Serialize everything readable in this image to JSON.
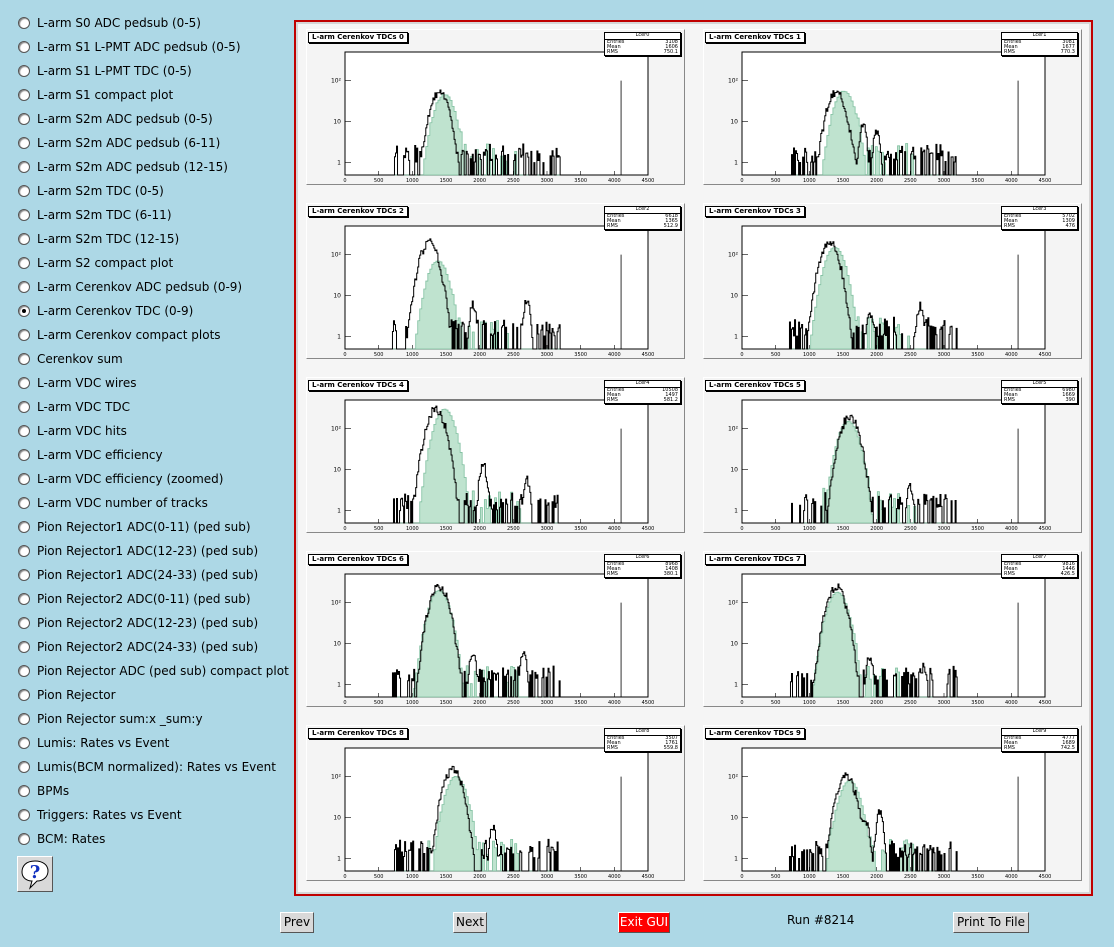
{
  "menu": {
    "selected_index": 12,
    "items": [
      "L-arm S0 ADC pedsub (0-5)",
      "L-arm S1 L-PMT ADC pedsub (0-5)",
      "L-arm S1 L-PMT TDC (0-5)",
      "L-arm S1 compact plot",
      "L-arm S2m ADC pedsub (0-5)",
      "L-arm S2m ADC pedsub (6-11)",
      "L-arm S2m ADC pedsub (12-15)",
      "L-arm S2m TDC (0-5)",
      "L-arm S2m TDC (6-11)",
      "L-arm S2m TDC (12-15)",
      "L-arm S2 compact plot",
      "L-arm Cerenkov ADC pedsub (0-9)",
      "L-arm Cerenkov TDC (0-9)",
      "L-arm Cerenkov compact plots",
      "Cerenkov sum",
      "L-arm VDC wires",
      "L-arm VDC TDC",
      "L-arm VDC hits",
      "L-arm VDC efficiency",
      "L-arm VDC efficiency (zoomed)",
      "L-arm VDC number of tracks",
      "Pion Rejector1 ADC(0-11) (ped sub)",
      "Pion Rejector1 ADC(12-23) (ped sub)",
      "Pion Rejector1 ADC(24-33) (ped sub)",
      "Pion Rejector2 ADC(0-11) (ped sub)",
      "Pion Rejector2 ADC(12-23) (ped sub)",
      "Pion Rejector2 ADC(24-33) (ped sub)",
      "Pion Rejector ADC (ped sub) compact plot",
      "Pion Rejector",
      "Pion Rejector sum:x _sum:y",
      "Lumis: Rates vs Event",
      "Lumis(BCM normalized): Rates vs Event",
      "BPMs",
      "Triggers: Rates vs Event",
      "BCM: Rates"
    ]
  },
  "help_icon": "question-mark-icon",
  "buttons": {
    "prev": "Prev",
    "next": "Next",
    "exit": "Exit GUI",
    "print": "Print To File"
  },
  "run_label": "Run #8214",
  "colors": {
    "frame": "#c00000",
    "exit_bg": "#ff0000",
    "secondary_hist": "#7fbf9f",
    "background": "#add8e6"
  },
  "chart_data": [
    {
      "type": "line",
      "title": "L-arm Cerenkov TDCs 0",
      "stats": {
        "name": "Lcer0",
        "entries": "3108",
        "mean": "1606",
        "rms": "750.1"
      },
      "y_scale": "log",
      "x_ticks": [
        "0",
        "500",
        "1000",
        "1500",
        "2000",
        "2500",
        "3000",
        "3500",
        "4000",
        "4500"
      ],
      "y_ticks": [
        "1",
        "10",
        "10²"
      ],
      "xlim": [
        0,
        4500
      ],
      "peak_x": 1400,
      "peak_y": 50,
      "green_peak_x": 1480,
      "green_peak_y": 45,
      "side_peaks": []
    },
    {
      "type": "line",
      "title": "L-arm Cerenkov TDCs 1",
      "stats": {
        "name": "Lcer1",
        "entries": "3081",
        "mean": "1677",
        "rms": "770.3"
      },
      "y_scale": "log",
      "x_ticks": [
        "0",
        "500",
        "1000",
        "1500",
        "2000",
        "2500",
        "3000",
        "3500",
        "4000",
        "4500"
      ],
      "y_ticks": [
        "1",
        "10",
        "10²"
      ],
      "xlim": [
        0,
        4500
      ],
      "peak_x": 1400,
      "peak_y": 50,
      "green_peak_x": 1520,
      "green_peak_y": 55,
      "side_peaks": [
        [
          1800,
          8
        ],
        [
          2000,
          6
        ]
      ]
    },
    {
      "type": "line",
      "title": "L-arm Cerenkov TDCs 2",
      "stats": {
        "name": "Lcer2",
        "entries": "6618",
        "mean": "1365",
        "rms": "512.9"
      },
      "y_scale": "log",
      "x_ticks": [
        "0",
        "500",
        "1000",
        "1500",
        "2000",
        "2500",
        "3000",
        "3500",
        "4000",
        "4500"
      ],
      "y_ticks": [
        "1",
        "10",
        "10²"
      ],
      "xlim": [
        0,
        4500
      ],
      "peak_x": 1250,
      "peak_y": 200,
      "green_peak_x": 1380,
      "green_peak_y": 70,
      "side_peaks": [
        [
          1900,
          6
        ],
        [
          2700,
          8
        ]
      ]
    },
    {
      "type": "line",
      "title": "L-arm Cerenkov TDCs 3",
      "stats": {
        "name": "Lcer3",
        "entries": "5702",
        "mean": "1309",
        "rms": "476"
      },
      "y_scale": "log",
      "x_ticks": [
        "0",
        "500",
        "1000",
        "1500",
        "2000",
        "2500",
        "3000",
        "3500",
        "4000",
        "4500"
      ],
      "y_ticks": [
        "1",
        "10",
        "10²"
      ],
      "xlim": [
        0,
        4500
      ],
      "peak_x": 1300,
      "peak_y": 200,
      "green_peak_x": 1380,
      "green_peak_y": 150,
      "side_peaks": [
        [
          1900,
          4
        ],
        [
          2650,
          6
        ]
      ]
    },
    {
      "type": "line",
      "title": "L-arm Cerenkov TDCs 4",
      "stats": {
        "name": "Lcer4",
        "entries": "10508",
        "mean": "1497",
        "rms": "581.2"
      },
      "y_scale": "log",
      "x_ticks": [
        "0",
        "500",
        "1000",
        "1500",
        "2000",
        "2500",
        "3000",
        "3500",
        "4000",
        "4500"
      ],
      "y_ticks": [
        "1",
        "10",
        "10²"
      ],
      "xlim": [
        0,
        4500
      ],
      "peak_x": 1350,
      "peak_y": 300,
      "green_peak_x": 1480,
      "green_peak_y": 300,
      "side_peaks": [
        [
          2050,
          15
        ],
        [
          2700,
          6
        ]
      ]
    },
    {
      "type": "line",
      "title": "L-arm Cerenkov TDCs 5",
      "stats": {
        "name": "Lcer5",
        "entries": "6980",
        "mean": "1669",
        "rms": "390"
      },
      "y_scale": "log",
      "x_ticks": [
        "0",
        "500",
        "1000",
        "1500",
        "2000",
        "2500",
        "3000",
        "3500",
        "4000",
        "4500"
      ],
      "y_ticks": [
        "1",
        "10",
        "10²"
      ],
      "xlim": [
        0,
        4500
      ],
      "peak_x": 1600,
      "peak_y": 200,
      "green_peak_x": 1580,
      "green_peak_y": 150,
      "side_peaks": [
        [
          2500,
          4
        ]
      ]
    },
    {
      "type": "line",
      "title": "L-arm Cerenkov TDCs 6",
      "stats": {
        "name": "Lcer6",
        "entries": "8968",
        "mean": "1408",
        "rms": "380.1"
      },
      "y_scale": "log",
      "x_ticks": [
        "0",
        "500",
        "1000",
        "1500",
        "2000",
        "2500",
        "3000",
        "3500",
        "4000",
        "4500"
      ],
      "y_ticks": [
        "1",
        "10",
        "10²"
      ],
      "xlim": [
        0,
        4500
      ],
      "peak_x": 1400,
      "peak_y": 250,
      "green_peak_x": 1400,
      "green_peak_y": 200,
      "side_peaks": [
        [
          1900,
          6
        ],
        [
          2650,
          6
        ]
      ]
    },
    {
      "type": "line",
      "title": "L-arm Cerenkov TDCs 7",
      "stats": {
        "name": "Lcer7",
        "entries": "9816",
        "mean": "1446",
        "rms": "426.5"
      },
      "y_scale": "log",
      "x_ticks": [
        "0",
        "500",
        "1000",
        "1500",
        "2000",
        "2500",
        "3000",
        "3500",
        "4000",
        "4500"
      ],
      "y_ticks": [
        "1",
        "10",
        "10²"
      ],
      "xlim": [
        0,
        4500
      ],
      "peak_x": 1400,
      "peak_y": 250,
      "green_peak_x": 1420,
      "green_peak_y": 180,
      "side_peaks": [
        [
          1900,
          5
        ],
        [
          2700,
          3
        ]
      ]
    },
    {
      "type": "line",
      "title": "L-arm Cerenkov TDCs 8",
      "stats": {
        "name": "Lcer8",
        "entries": "3507",
        "mean": "1761",
        "rms": "559.8"
      },
      "y_scale": "log",
      "x_ticks": [
        "0",
        "500",
        "1000",
        "1500",
        "2000",
        "2500",
        "3000",
        "3500",
        "4000",
        "4500"
      ],
      "y_ticks": [
        "1",
        "10",
        "10²"
      ],
      "xlim": [
        0,
        4500
      ],
      "peak_x": 1600,
      "peak_y": 150,
      "green_peak_x": 1650,
      "green_peak_y": 100,
      "side_peaks": [
        [
          2200,
          6
        ]
      ]
    },
    {
      "type": "line",
      "title": "L-arm Cerenkov TDCs 9",
      "stats": {
        "name": "Lcer9",
        "entries": "4777",
        "mean": "1689",
        "rms": "742.5"
      },
      "y_scale": "log",
      "x_ticks": [
        "0",
        "500",
        "1000",
        "1500",
        "2000",
        "2500",
        "3000",
        "3500",
        "4000",
        "4500"
      ],
      "y_ticks": [
        "1",
        "10",
        "10²"
      ],
      "xlim": [
        0,
        4500
      ],
      "peak_x": 1550,
      "peak_y": 100,
      "green_peak_x": 1600,
      "green_peak_y": 80,
      "side_peaks": [
        [
          2050,
          15
        ],
        [
          1850,
          6
        ]
      ]
    }
  ]
}
